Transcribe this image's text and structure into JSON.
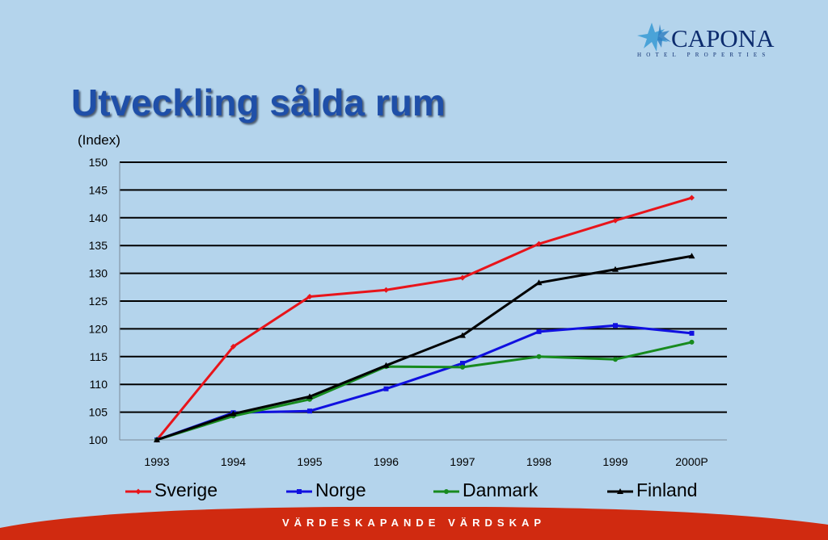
{
  "logo": {
    "name": "CAPONA",
    "tagline": "HOTEL PROPERTIES",
    "icon": "star-logo-icon",
    "color": "#0d2c6e",
    "accent": "#4aa3d8"
  },
  "title": "Utveckling sålda rum",
  "unit": "(Index)",
  "footer": {
    "text": "VÄRDESKAPANDE VÄRDSKAP",
    "color": "#d02a10"
  },
  "chart_data": {
    "type": "line",
    "categories": [
      "1993",
      "1994",
      "1995",
      "1996",
      "1997",
      "1998",
      "1999",
      "2000P"
    ],
    "ylim": [
      100,
      150
    ],
    "yticks": [
      "100",
      "105",
      "110",
      "115",
      "120",
      "125",
      "130",
      "135",
      "140",
      "145",
      "150"
    ],
    "grid": true,
    "legend_position": "bottom",
    "series": [
      {
        "name": "Sverige",
        "color": "#e8141a",
        "marker": "diamond",
        "values": [
          100,
          116.8,
          125.8,
          127,
          129.2,
          135.3,
          139.5,
          143.6
        ]
      },
      {
        "name": "Norge",
        "color": "#1010e0",
        "marker": "square",
        "values": [
          100,
          104.9,
          105.2,
          109.2,
          113.8,
          119.5,
          120.6,
          119.2
        ]
      },
      {
        "name": "Danmark",
        "color": "#178a1e",
        "marker": "circle",
        "values": [
          100,
          104.3,
          107.3,
          113.2,
          113.1,
          115,
          114.5,
          117.6
        ]
      },
      {
        "name": "Finland",
        "color": "#000000",
        "marker": "triangle",
        "values": [
          100,
          104.7,
          107.8,
          113.4,
          118.8,
          128.3,
          130.7,
          133.1
        ]
      }
    ]
  }
}
